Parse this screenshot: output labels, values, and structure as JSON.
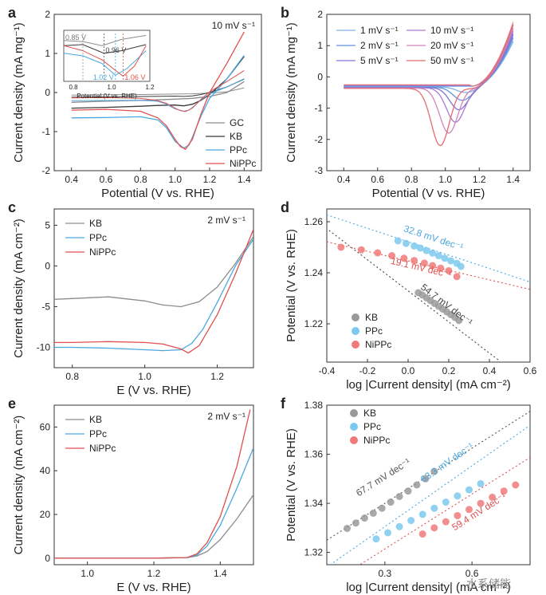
{
  "watermark": "水系储能",
  "chart_data": [
    {
      "id": "a",
      "type": "line",
      "panel_label": "a",
      "annotation": "10 mV s⁻¹",
      "xlabel": "Potential (V vs. RHE)",
      "ylabel": "Current density (mA mg⁻¹)",
      "xlim": [
        0.3,
        1.5
      ],
      "ylim": [
        -2,
        2
      ],
      "xticks": [
        0.4,
        0.6,
        0.8,
        1.0,
        1.2,
        1.4
      ],
      "yticks": [
        -2,
        -1,
        0,
        1,
        2
      ],
      "legend_position": "bottom-right",
      "series": [
        {
          "name": "GC",
          "color": "#8c8c8c",
          "x": [
            0.4,
            0.6,
            0.8,
            1.0,
            1.1,
            1.2,
            1.3,
            1.4
          ],
          "y": [
            -0.25,
            -0.22,
            -0.2,
            -0.17,
            -0.15,
            -0.1,
            0.0,
            0.28
          ]
        },
        {
          "name": "KB",
          "color": "#3a3a3a",
          "x": [
            0.4,
            0.6,
            0.8,
            0.9,
            1.0,
            1.05,
            1.1,
            1.15,
            1.2,
            1.3,
            1.4
          ],
          "y": [
            -0.4,
            -0.38,
            -0.35,
            -0.33,
            -0.32,
            -0.34,
            -0.3,
            -0.2,
            -0.05,
            0.35,
            0.92
          ]
        },
        {
          "name": "PPc",
          "color": "#4aa8e0",
          "x": [
            0.4,
            0.6,
            0.8,
            0.9,
            0.95,
            1.0,
            1.05,
            1.08,
            1.1,
            1.15,
            1.2,
            1.3,
            1.4
          ],
          "y": [
            -0.65,
            -0.64,
            -0.62,
            -0.7,
            -0.9,
            -1.25,
            -1.42,
            -1.35,
            -1.15,
            -0.6,
            -0.15,
            0.35,
            0.95
          ]
        },
        {
          "name": "NiPPc",
          "color": "#e05050",
          "x": [
            0.4,
            0.6,
            0.8,
            0.9,
            0.95,
            1.0,
            1.03,
            1.06,
            1.1,
            1.15,
            1.2,
            1.3,
            1.4
          ],
          "y": [
            -0.45,
            -0.43,
            -0.48,
            -0.65,
            -0.85,
            -1.2,
            -1.38,
            -1.45,
            -1.2,
            -0.55,
            0.0,
            0.75,
            1.55
          ]
        }
      ],
      "inset": {
        "xlabel": "Potential (V vs. RHE)",
        "xlim": [
          0.75,
          1.2
        ],
        "xticks": [
          0.8,
          1.0,
          1.2
        ],
        "annotations": [
          "0.85 V",
          "0.96 V",
          "1.02 V",
          "1.06 V"
        ]
      }
    },
    {
      "id": "b",
      "type": "line",
      "panel_label": "b",
      "xlabel": "Potential (V vs. RHE)",
      "ylabel": "Current density (mA mg⁻¹)",
      "xlim": [
        0.3,
        1.5
      ],
      "ylim": [
        -3,
        2
      ],
      "xticks": [
        0.4,
        0.6,
        0.8,
        1.0,
        1.2,
        1.4
      ],
      "yticks": [
        -3,
        -2,
        -1,
        0,
        1,
        2
      ],
      "legend_position": "top",
      "series": [
        {
          "name": "1 mV s⁻¹",
          "color": "#7fb0e8",
          "peak_x": 1.12,
          "peak_y": -0.5
        },
        {
          "name": "2 mV s⁻¹",
          "color": "#5f95dd",
          "peak_x": 1.1,
          "peak_y": -0.75
        },
        {
          "name": "5 mV s⁻¹",
          "color": "#7d73d6",
          "peak_x": 1.08,
          "peak_y": -1.05
        },
        {
          "name": "10 mV s⁻¹",
          "color": "#a77ad0",
          "peak_x": 1.06,
          "peak_y": -1.45
        },
        {
          "name": "20 mV s⁻¹",
          "color": "#d085b8",
          "peak_x": 1.02,
          "peak_y": -1.8
        },
        {
          "name": "50 mV s⁻¹",
          "color": "#e36c72",
          "peak_x": 0.97,
          "peak_y": -2.2
        }
      ]
    },
    {
      "id": "c",
      "type": "line",
      "panel_label": "c",
      "annotation": "2 mV s⁻¹",
      "xlabel": "E (V vs. RHE)",
      "ylabel": "Current density (mA cm⁻²)",
      "xlim": [
        0.75,
        1.3
      ],
      "ylim": [
        -12.5,
        7
      ],
      "xticks": [
        0.8,
        1.0,
        1.2
      ],
      "yticks": [
        -10,
        -5,
        0,
        5
      ],
      "legend_position": "top-left",
      "series": [
        {
          "name": "KB",
          "color": "#8c8c8c",
          "x": [
            0.75,
            0.8,
            0.9,
            1.0,
            1.05,
            1.1,
            1.15,
            1.2,
            1.25,
            1.3
          ],
          "y": [
            -4.1,
            -4.0,
            -3.8,
            -4.3,
            -4.8,
            -5.0,
            -4.4,
            -2.6,
            0.3,
            3.6
          ]
        },
        {
          "name": "PPc",
          "color": "#4aa8e0",
          "x": [
            0.75,
            0.8,
            0.9,
            1.0,
            1.05,
            1.1,
            1.13,
            1.16,
            1.2,
            1.25,
            1.3
          ],
          "y": [
            -10.0,
            -10.0,
            -10.1,
            -10.3,
            -10.4,
            -10.3,
            -9.5,
            -7.8,
            -4.5,
            0.0,
            3.3
          ]
        },
        {
          "name": "NiPPc",
          "color": "#e05050",
          "x": [
            0.75,
            0.8,
            0.9,
            1.0,
            1.05,
            1.1,
            1.12,
            1.15,
            1.2,
            1.25,
            1.3
          ],
          "y": [
            -9.4,
            -9.4,
            -9.3,
            -9.4,
            -9.6,
            -10.2,
            -10.7,
            -9.8,
            -6.0,
            -1.0,
            4.5
          ]
        }
      ]
    },
    {
      "id": "d",
      "type": "scatter",
      "panel_label": "d",
      "xlabel": "log |Current density| (mA cm⁻²)",
      "ylabel": "Potential (V vs. RHE)",
      "xlim": [
        -0.4,
        0.6
      ],
      "ylim": [
        1.205,
        1.265
      ],
      "xticks": [
        -0.4,
        -0.2,
        0.0,
        0.2,
        0.4,
        0.6
      ],
      "yticks": [
        1.22,
        1.24,
        1.26
      ],
      "legend_position": "bottom-left",
      "series": [
        {
          "name": "KB",
          "color": "#9a9a9a",
          "x": [
            0.05,
            0.07,
            0.09,
            0.11,
            0.13,
            0.15,
            0.17,
            0.19,
            0.21,
            0.23,
            0.25
          ],
          "y": [
            1.2322,
            1.2313,
            1.2302,
            1.2291,
            1.228,
            1.2269,
            1.2258,
            1.2247,
            1.2236,
            1.2225,
            1.2213
          ]
        },
        {
          "name": "PPc",
          "color": "#7cc8ef",
          "x": [
            -0.05,
            -0.01,
            0.03,
            0.06,
            0.09,
            0.12,
            0.15,
            0.18,
            0.21,
            0.24,
            0.26
          ],
          "y": [
            1.2525,
            1.2515,
            1.2505,
            1.2497,
            1.2487,
            1.2477,
            1.2467,
            1.2457,
            1.2447,
            1.2437,
            1.2425
          ]
        },
        {
          "name": "NiPPc",
          "color": "#f07a7a",
          "x": [
            -0.33,
            -0.23,
            -0.15,
            -0.08,
            -0.02,
            0.03,
            0.08,
            0.12,
            0.16,
            0.2,
            0.24
          ],
          "y": [
            1.25,
            1.249,
            1.2478,
            1.2467,
            1.2457,
            1.2448,
            1.2438,
            1.2428,
            1.2418,
            1.2408,
            1.2385
          ]
        }
      ],
      "fits": [
        {
          "label": "54.7 mV dec⁻¹",
          "color": "#444444",
          "x": [
            -0.42,
            0.45
          ],
          "y": [
            1.2585,
            1.2055
          ]
        },
        {
          "label": "32.8 mV dec⁻¹",
          "color": "#4aa8e0",
          "x": [
            -0.42,
            0.6
          ],
          "y": [
            1.2632,
            1.2364
          ]
        },
        {
          "label": "19.1 mV dec⁻¹",
          "color": "#e05050",
          "x": [
            -0.42,
            0.6
          ],
          "y": [
            1.2525,
            1.2335
          ]
        }
      ]
    },
    {
      "id": "e",
      "type": "line",
      "panel_label": "e",
      "annotation": "2 mV s⁻¹",
      "xlabel": "E (V vs. RHE)",
      "ylabel": "Current density (mA cm⁻²)",
      "xlim": [
        0.9,
        1.5
      ],
      "ylim": [
        -3,
        70
      ],
      "xticks": [
        1.0,
        1.2,
        1.4
      ],
      "yticks": [
        0,
        20,
        40,
        60
      ],
      "legend_position": "top-left",
      "series": [
        {
          "name": "KB",
          "color": "#8c8c8c",
          "x": [
            0.9,
            1.2,
            1.3,
            1.33,
            1.36,
            1.4,
            1.45,
            1.5
          ],
          "y": [
            0,
            0,
            0.2,
            1.0,
            3.0,
            8.5,
            18.0,
            29.0
          ]
        },
        {
          "name": "PPc",
          "color": "#4aa8e0",
          "x": [
            0.9,
            1.2,
            1.3,
            1.33,
            1.36,
            1.4,
            1.45,
            1.5
          ],
          "y": [
            0,
            0,
            0.3,
            1.5,
            5.5,
            15.0,
            32.0,
            50.5
          ]
        },
        {
          "name": "NiPPc",
          "color": "#e05050",
          "x": [
            0.9,
            1.2,
            1.3,
            1.33,
            1.36,
            1.4,
            1.45,
            1.49
          ],
          "y": [
            0,
            0,
            0.3,
            2.0,
            7.0,
            19.0,
            42.0,
            68.0
          ]
        }
      ]
    },
    {
      "id": "f",
      "type": "scatter",
      "panel_label": "f",
      "xlabel": "log |Current density| (mA cm⁻²)",
      "ylabel": "Potential (V vs. RHE)",
      "xlim": [
        0.1,
        0.8
      ],
      "ylim": [
        1.315,
        1.38
      ],
      "xticks": [
        0.3,
        0.6
      ],
      "yticks": [
        1.32,
        1.34,
        1.36,
        1.38
      ],
      "legend_position": "top-left",
      "series": [
        {
          "name": "KB",
          "color": "#9a9a9a",
          "x": [
            0.17,
            0.2,
            0.23,
            0.26,
            0.29,
            0.32,
            0.35,
            0.38,
            0.41,
            0.44,
            0.47
          ],
          "y": [
            1.3298,
            1.332,
            1.334,
            1.336,
            1.338,
            1.3405,
            1.3428,
            1.345,
            1.3475,
            1.35,
            1.353
          ]
        },
        {
          "name": "PPc",
          "color": "#7cc8ef",
          "x": [
            0.27,
            0.31,
            0.35,
            0.39,
            0.43,
            0.47,
            0.51,
            0.55,
            0.59,
            0.63
          ],
          "y": [
            1.3255,
            1.328,
            1.3305,
            1.333,
            1.3355,
            1.338,
            1.3405,
            1.343,
            1.3455,
            1.348
          ]
        },
        {
          "name": "NiPPc",
          "color": "#f07a7a",
          "x": [
            0.43,
            0.47,
            0.51,
            0.55,
            0.59,
            0.63,
            0.67,
            0.71,
            0.75
          ],
          "y": [
            1.3275,
            1.33,
            1.3325,
            1.335,
            1.3375,
            1.34,
            1.3425,
            1.345,
            1.3475
          ]
        }
      ],
      "fits": [
        {
          "label": "67.7 mV dec⁻¹",
          "color": "#555555",
          "x": [
            0.1,
            0.8
          ],
          "y": [
            1.325,
            1.3775
          ]
        },
        {
          "label": "63.3 mV dec⁻¹",
          "color": "#4aa8e0",
          "x": [
            0.1,
            0.8
          ],
          "y": [
            1.314,
            1.3718
          ]
        },
        {
          "label": "59.4 mV dec⁻¹",
          "color": "#e05050",
          "x": [
            0.1,
            0.8
          ],
          "y": [
            1.3065,
            1.3587
          ]
        }
      ]
    }
  ]
}
